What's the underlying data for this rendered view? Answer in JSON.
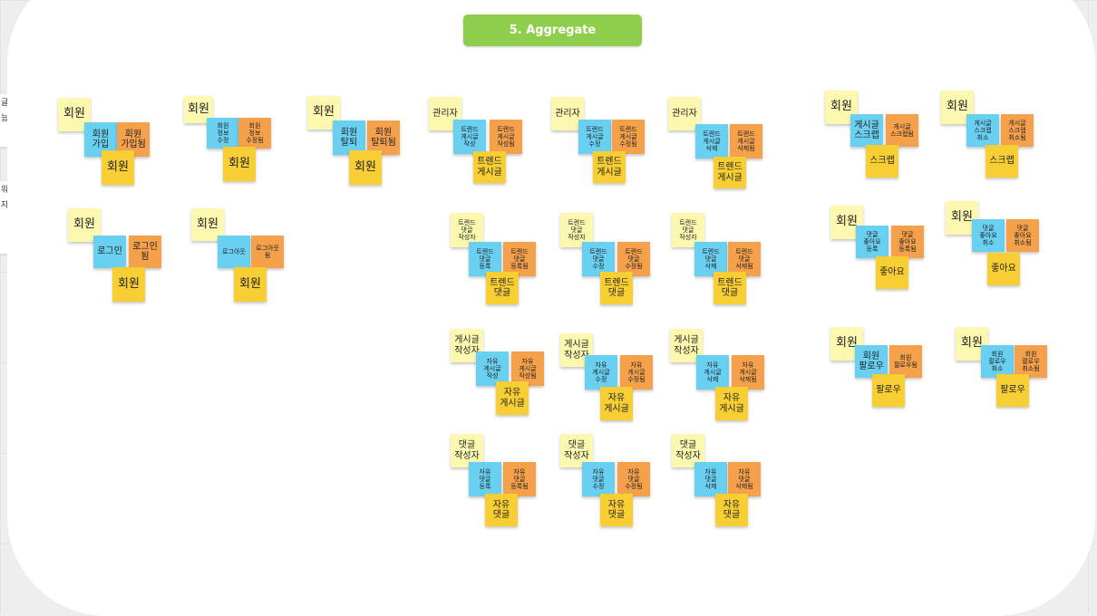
{
  "board": {
    "title": "5. Aggregate",
    "edge_notes": [
      "글",
      "능",
      "워",
      "자"
    ]
  },
  "colors": {
    "actor": "#fdf8b0",
    "command": "#6ad0f2",
    "event": "#f5a14b",
    "aggregate": "#f7cf34",
    "title": "#8fce4d"
  },
  "stickies": [
    {
      "type": "actor",
      "text": "회원"
    },
    {
      "type": "cmd",
      "text": "회원\n가입"
    },
    {
      "type": "evt",
      "text": "회원\n가입됨"
    },
    {
      "type": "agg",
      "text": "회원"
    },
    {
      "type": "actor",
      "text": "회원"
    },
    {
      "type": "cmd",
      "text": "회원\n정보\n수정"
    },
    {
      "type": "evt",
      "text": "회원\n정보\n수정됨"
    },
    {
      "type": "agg",
      "text": "회원"
    },
    {
      "type": "actor",
      "text": "회원"
    },
    {
      "type": "cmd",
      "text": "회원\n탈퇴"
    },
    {
      "type": "evt",
      "text": "회원\n탈퇴됨"
    },
    {
      "type": "agg",
      "text": "회원"
    },
    {
      "type": "actor",
      "text": "회원"
    },
    {
      "type": "cmd",
      "text": "로그인"
    },
    {
      "type": "evt",
      "text": "로그인\n됨"
    },
    {
      "type": "agg",
      "text": "회원"
    },
    {
      "type": "actor",
      "text": "회원"
    },
    {
      "type": "cmd",
      "text": "로그아웃"
    },
    {
      "type": "evt",
      "text": "로그아웃\n됨"
    },
    {
      "type": "agg",
      "text": "회원"
    },
    {
      "type": "actor",
      "text": "관리자"
    },
    {
      "type": "cmd",
      "text": "트렌드\n게시글\n작성"
    },
    {
      "type": "evt",
      "text": "트렌드\n게시글\n작성됨"
    },
    {
      "type": "agg",
      "text": "트렌드\n게시글"
    },
    {
      "type": "actor",
      "text": "관리자"
    },
    {
      "type": "cmd",
      "text": "트렌드\n게시글\n수정"
    },
    {
      "type": "evt",
      "text": "트렌드\n게시글\n수정됨"
    },
    {
      "type": "agg",
      "text": "트렌드\n게시글"
    },
    {
      "type": "actor",
      "text": "관리자"
    },
    {
      "type": "cmd",
      "text": "트렌드\n게시글\n삭제"
    },
    {
      "type": "evt",
      "text": "트렌드\n게시글\n삭제됨"
    },
    {
      "type": "agg",
      "text": "트렌드\n게시글"
    },
    {
      "type": "actor",
      "text": "트렌드\n댓글\n작성자"
    },
    {
      "type": "cmd",
      "text": "트렌드\n댓글\n등록"
    },
    {
      "type": "evt",
      "text": "트렌드\n댓글\n등록됨"
    },
    {
      "type": "agg",
      "text": "트렌드\n댓글"
    },
    {
      "type": "actor",
      "text": "트렌드\n댓글\n작성자"
    },
    {
      "type": "cmd",
      "text": "트렌드\n댓글\n수정"
    },
    {
      "type": "evt",
      "text": "트렌드\n댓글\n수정됨"
    },
    {
      "type": "agg",
      "text": "트렌드\n댓글"
    },
    {
      "type": "actor",
      "text": "트렌드\n댓글\n작성자"
    },
    {
      "type": "cmd",
      "text": "트렌드\n댓글\n삭제"
    },
    {
      "type": "evt",
      "text": "트렌드\n댓글\n삭제됨"
    },
    {
      "type": "agg",
      "text": "트렌드\n댓글"
    },
    {
      "type": "actor",
      "text": "게시글\n작성자"
    },
    {
      "type": "cmd",
      "text": "자유\n게시글\n작성"
    },
    {
      "type": "evt",
      "text": "자유\n게시글\n작성됨"
    },
    {
      "type": "agg",
      "text": "자유\n게시글"
    },
    {
      "type": "actor",
      "text": "게시글\n작성자"
    },
    {
      "type": "cmd",
      "text": "자유\n게시글\n수정"
    },
    {
      "type": "evt",
      "text": "자유\n게시글\n수정됨"
    },
    {
      "type": "agg",
      "text": "자유\n게시글"
    },
    {
      "type": "actor",
      "text": "게시글\n작성자"
    },
    {
      "type": "cmd",
      "text": "자유\n게시글\n삭제"
    },
    {
      "type": "evt",
      "text": "자유\n게시글\n삭제됨"
    },
    {
      "type": "agg",
      "text": "자유\n게시글"
    },
    {
      "type": "actor",
      "text": "댓글\n작성자"
    },
    {
      "type": "cmd",
      "text": "자유\n댓글\n등록"
    },
    {
      "type": "evt",
      "text": "자유\n댓글\n등록됨"
    },
    {
      "type": "agg",
      "text": "자유\n댓글"
    },
    {
      "type": "actor",
      "text": "댓글\n작성자"
    },
    {
      "type": "cmd",
      "text": "자유\n댓글\n수정"
    },
    {
      "type": "evt",
      "text": "자유\n댓글\n수정됨"
    },
    {
      "type": "agg",
      "text": "자유\n댓글"
    },
    {
      "type": "actor",
      "text": "댓글\n작성자"
    },
    {
      "type": "cmd",
      "text": "자유\n댓글\n삭제"
    },
    {
      "type": "evt",
      "text": "자유\n댓글\n삭제됨"
    },
    {
      "type": "agg",
      "text": "자유\n댓글"
    },
    {
      "type": "actor",
      "text": "회원"
    },
    {
      "type": "cmd",
      "text": "게시글\n스크랩"
    },
    {
      "type": "evt",
      "text": "게시글\n스크랩됨"
    },
    {
      "type": "agg",
      "text": "스크랩"
    },
    {
      "type": "actor",
      "text": "회원"
    },
    {
      "type": "cmd",
      "text": "게시글\n스크랩\n취소"
    },
    {
      "type": "evt",
      "text": "게시글\n스크랩\n취소됨"
    },
    {
      "type": "agg",
      "text": "스크랩"
    },
    {
      "type": "actor",
      "text": "회원"
    },
    {
      "type": "cmd",
      "text": "댓글\n좋아요\n등록"
    },
    {
      "type": "evt",
      "text": "댓글\n좋아요\n등록됨"
    },
    {
      "type": "agg",
      "text": "좋아요"
    },
    {
      "type": "actor",
      "text": "회원"
    },
    {
      "type": "cmd",
      "text": "댓글\n좋아요\n취소"
    },
    {
      "type": "evt",
      "text": "댓글\n좋아요\n취소됨"
    },
    {
      "type": "agg",
      "text": "좋아요"
    },
    {
      "type": "actor",
      "text": "회원"
    },
    {
      "type": "cmd",
      "text": "회원\n팔로우"
    },
    {
      "type": "evt",
      "text": "회원\n팔로우됨"
    },
    {
      "type": "agg",
      "text": "팔로우"
    },
    {
      "type": "actor",
      "text": "회원"
    },
    {
      "type": "cmd",
      "text": "회원\n팔로우\n취소"
    },
    {
      "type": "evt",
      "text": "회원\n팔로우\n취소됨"
    },
    {
      "type": "agg",
      "text": "팔로우"
    }
  ]
}
